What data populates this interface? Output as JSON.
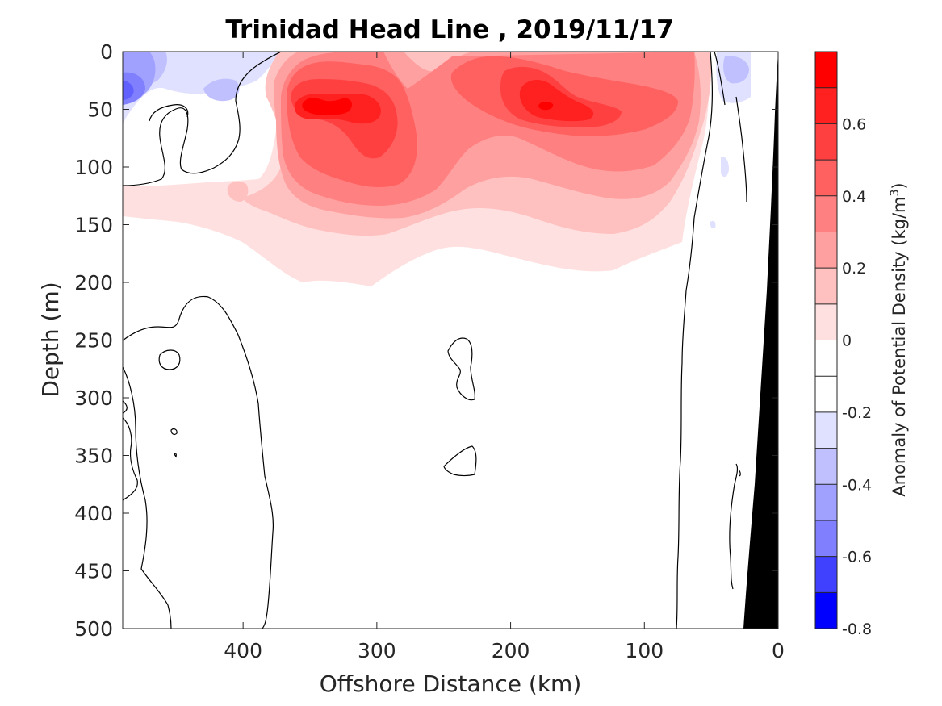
{
  "chart_data": {
    "type": "heatmap",
    "title": "Trinidad Head Line , 2019/11/17",
    "xlabel": "Offshore Distance (km)",
    "ylabel": "Depth (m)",
    "xlim": [
      490,
      0
    ],
    "ylim": [
      0,
      500
    ],
    "x_ticks": [
      "400",
      "300",
      "200",
      "100",
      "0"
    ],
    "x_tick_values": [
      400,
      300,
      200,
      100,
      0
    ],
    "y_ticks": [
      "0",
      "50",
      "100",
      "150",
      "200",
      "250",
      "300",
      "350",
      "400",
      "450",
      "500"
    ],
    "y_tick_values": [
      0,
      50,
      100,
      150,
      200,
      250,
      300,
      350,
      400,
      450,
      500
    ],
    "colorbar": {
      "label": "Anomaly of Potential Density (kg/m",
      "label_superscript": "3",
      "label_suffix": ")",
      "ticks": [
        "0.6",
        "0.4",
        "0.2",
        "0",
        "-0.2",
        "-0.4",
        "-0.6",
        "-0.8"
      ],
      "tick_values": [
        0.6,
        0.4,
        0.2,
        0,
        -0.2,
        -0.4,
        -0.6,
        -0.8
      ],
      "range": [
        -0.8,
        0.8
      ],
      "levels": [
        -0.8,
        -0.7,
        -0.6,
        -0.5,
        -0.4,
        -0.3,
        -0.2,
        -0.1,
        0.1,
        0.2,
        0.3,
        0.4,
        0.5,
        0.6,
        0.7,
        0.8
      ],
      "colors": [
        "#0000ff",
        "#2020ff",
        "#4040ff",
        "#6060ff",
        "#8080ff",
        "#a0a0ff",
        "#c0c0ff",
        "#e0e0ff",
        "#ffffff",
        "#ffe0e0",
        "#ffc0c0",
        "#ffa0a0",
        "#ff8080",
        "#ff6060",
        "#ff4040",
        "#ff2020",
        "#ff0000"
      ]
    },
    "anomaly_features": [
      {
        "kind": "positive",
        "name": "offshore-core",
        "center_km": 320,
        "center_depth_m": 50,
        "peak": 0.8,
        "extent_km": [
          370,
          250
        ],
        "extent_depth_m": [
          10,
          200
        ]
      },
      {
        "kind": "positive",
        "name": "nearshore-core",
        "center_km": 175,
        "center_depth_m": 48,
        "peak": 0.75,
        "extent_km": [
          260,
          60
        ],
        "extent_depth_m": [
          0,
          190
        ]
      },
      {
        "kind": "negative",
        "name": "surface-offshore",
        "center_km": 480,
        "center_depth_m": 30,
        "peak": -0.4,
        "extent_km": [
          490,
          400
        ],
        "extent_depth_m": [
          0,
          50
        ]
      },
      {
        "kind": "negative",
        "name": "surface-coastal",
        "center_km": 35,
        "center_depth_m": 25,
        "peak": -0.3,
        "extent_km": [
          45,
          20
        ],
        "extent_depth_m": [
          0,
          45
        ]
      }
    ],
    "zero_contours_drawn": true,
    "bathymetry": "black wedge near 0 km",
    "grid": false
  }
}
